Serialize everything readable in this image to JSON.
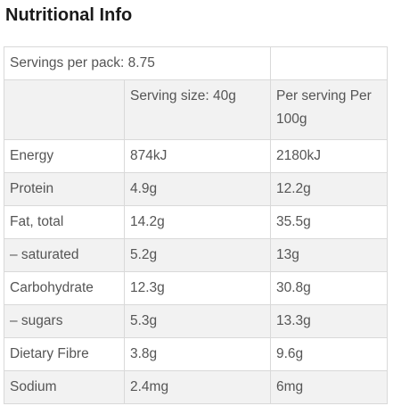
{
  "title": "Nutritional Info",
  "servings": "Servings per pack: 8.75",
  "columns": {
    "serving_size": "Serving size: 40g",
    "per_100g": "Per serving Per 100g"
  },
  "rows": [
    {
      "name": "Energy",
      "serving": "874kJ",
      "per100": "2180kJ"
    },
    {
      "name": "Protein",
      "serving": "4.9g",
      "per100": "12.2g"
    },
    {
      "name": "Fat, total",
      "serving": "14.2g",
      "per100": "35.5g"
    },
    {
      "name": "– saturated",
      "serving": "5.2g",
      "per100": "13g"
    },
    {
      "name": "Carbohydrate",
      "serving": "12.3g",
      "per100": "30.8g"
    },
    {
      "name": "– sugars",
      "serving": "5.3g",
      "per100": "13.3g"
    },
    {
      "name": "Dietary Fibre",
      "serving": "3.8g",
      "per100": "9.6g"
    },
    {
      "name": "Sodium",
      "serving": "2.4mg",
      "per100": "6mg"
    }
  ]
}
